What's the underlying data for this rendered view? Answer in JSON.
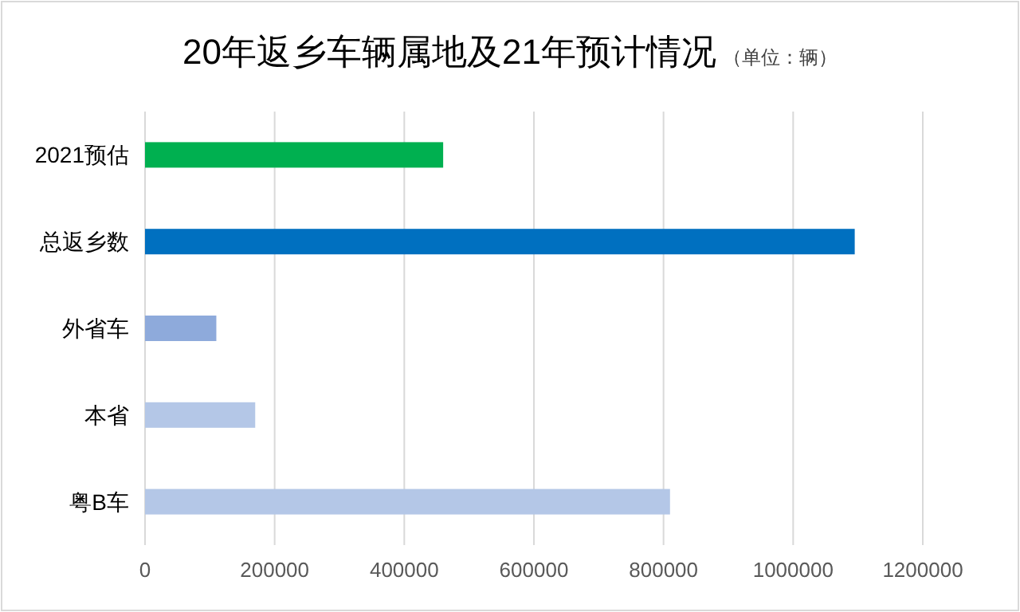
{
  "chart_data": {
    "type": "bar",
    "orientation": "horizontal",
    "title": "20年返乡车辆属地及21年预计情况",
    "subtitle": "（单位：辆）",
    "categories": [
      "2021预估",
      "总返乡数",
      "外省车",
      "本省",
      "粤B车"
    ],
    "values": [
      460000,
      1095000,
      110000,
      170000,
      810000
    ],
    "colors": [
      "#00b050",
      "#0070c0",
      "#8eaadb",
      "#b4c7e7",
      "#b4c7e7"
    ],
    "xlim": [
      0,
      1200000
    ],
    "xticks": [
      0,
      200000,
      400000,
      600000,
      800000,
      1000000,
      1200000
    ],
    "grid": "x"
  }
}
